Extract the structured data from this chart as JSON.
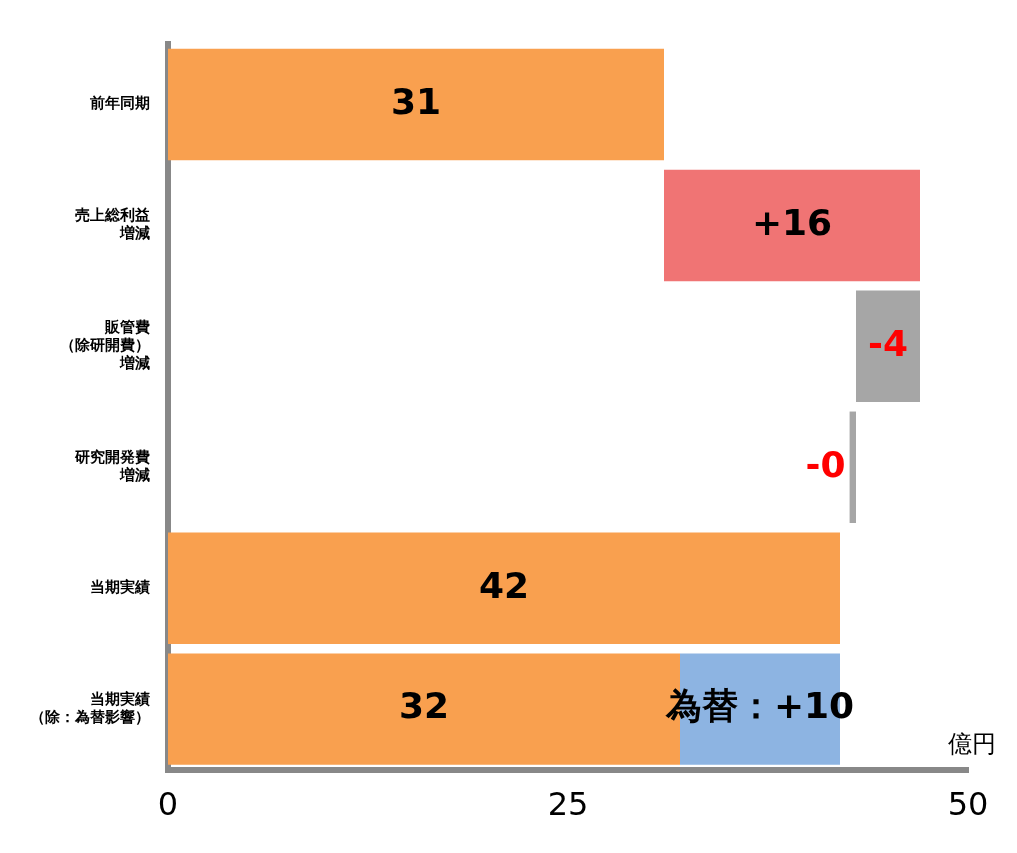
{
  "chart_data": {
    "type": "bar",
    "orientation": "horizontal",
    "categories": [
      "前年同期",
      "売上総利益増減",
      "販管費（除研開費）増減",
      "研究開発費増減",
      "当期実績",
      "当期実績（除：為替影響）"
    ],
    "series": [
      {
        "color": "#f9a04f",
        "base": [
          0,
          null,
          null,
          null,
          0,
          0
        ],
        "values": [
          31,
          null,
          null,
          null,
          42,
          32
        ],
        "value_labels": [
          "31",
          null,
          null,
          null,
          "42",
          "32"
        ]
      },
      {
        "color": "#f07474",
        "base": [
          null,
          31,
          null,
          null,
          null,
          null
        ],
        "values": [
          null,
          16,
          null,
          null,
          null,
          null
        ],
        "value_labels": [
          null,
          "+16",
          null,
          null,
          null,
          null
        ]
      },
      {
        "color": "#a6a6a6",
        "base": [
          null,
          null,
          47,
          43,
          null,
          null
        ],
        "values": [
          null,
          null,
          -4,
          -0.4,
          null,
          null
        ],
        "value_labels": [
          null,
          null,
          "-4",
          "-0",
          null,
          null
        ]
      },
      {
        "color": "#8db4e2",
        "base": [
          null,
          null,
          null,
          null,
          null,
          32
        ],
        "values": [
          null,
          null,
          null,
          null,
          null,
          10
        ],
        "value_labels": [
          null,
          null,
          null,
          null,
          null,
          "為替：+10"
        ]
      }
    ],
    "xlabel": "億円",
    "xlim": [
      0,
      50
    ],
    "xticks": [
      0,
      25,
      50
    ],
    "legend": false
  }
}
